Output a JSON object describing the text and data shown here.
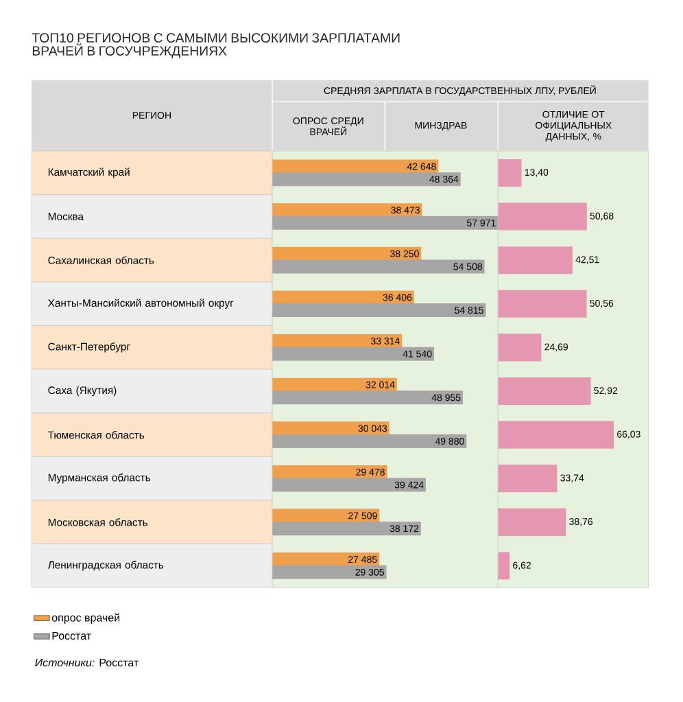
{
  "chart_data": [
    {
      "type": "bar",
      "orientation": "horizontal",
      "title": "ТОП10 РЕГИОНОВ С САМЫМИ ВЫСОКИМИ ЗАРПЛАТАМИ ВРАЧЕЙ В ГОСУЧРЕЖДЕНИЯХ",
      "subtitle": "СРЕДНЯЯ ЗАРПЛАТА В ГОСУДАРСТВЕННЫХ ЛПУ, РУБЛЕЙ",
      "ylabel": "РЕГИОН",
      "annotations": [
        "ОПРОС СРЕДИ ВРАЧЕЙ",
        "МИНЗДРАВ",
        "*Источники:* Росстат"
      ],
      "categories": [
        "Камчатский край",
        "Москва",
        "Сахалинская область",
        "Ханты-Мансийский автономный округ",
        "Санкт-Петербург",
        "Саха (Якутия)",
        "Тюменская область",
        "Мурманская область",
        "Московская область",
        "Ленинградская область"
      ],
      "series": [
        {
          "name": "опрос врачей",
          "color": "#f0a04b",
          "values": [
            42648,
            38473,
            38250,
            36406,
            33314,
            32014,
            30043,
            29478,
            27509,
            27485
          ],
          "value_labels": [
            "42 648",
            "38 473",
            "38 250",
            "36 406",
            "33 314",
            "32 014",
            "30 043",
            "29 478",
            "27 509",
            "27 485"
          ]
        },
        {
          "name": "Росстат",
          "color": "#a6a6a6",
          "values": [
            48364,
            57971,
            54508,
            54815,
            41540,
            48955,
            49880,
            39424,
            38172,
            29305
          ],
          "value_labels": [
            "48 364",
            "57 971",
            "54 508",
            "54 815",
            "41 540",
            "48 955",
            "49 880",
            "39 424",
            "38 172",
            "29 305"
          ]
        }
      ],
      "legend": "bottom left"
    },
    {
      "type": "bar",
      "orientation": "horizontal",
      "title": "ОТЛИЧИЕ ОТ ОФИЦИАЛЬНЫХ ДАННЫХ, %",
      "values": [
        13.4,
        50.68,
        42.51,
        50.56,
        24.69,
        52.92,
        66.03,
        33.74,
        38.76,
        6.62
      ],
      "value_labels": [
        "13,40",
        "50,68",
        "42,51",
        "50,56",
        "24,69",
        "52,92",
        "66,03",
        "33,74",
        "38,76",
        "6,62"
      ],
      "color": "#e597b2"
    }
  ]
}
